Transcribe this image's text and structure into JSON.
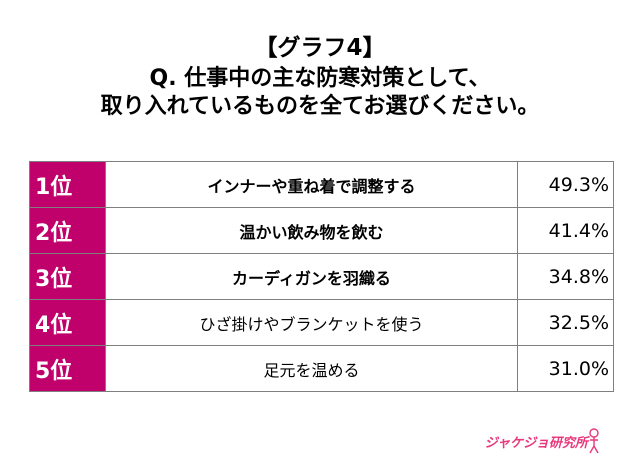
{
  "title": {
    "line1": "【グラフ4】",
    "line2": "Q. 仕事中の主な防寒対策として、",
    "line3": "取り入れているものを全てお選びください。"
  },
  "chart_data": {
    "type": "table",
    "rows": [
      {
        "rank": "1位",
        "label": "インナーや重ね着で調整する",
        "value": "49.3%",
        "bold": true
      },
      {
        "rank": "2位",
        "label": "温かい飲み物を飲む",
        "value": "41.4%",
        "bold": true
      },
      {
        "rank": "3位",
        "label": "カーディガンを羽織る",
        "value": "34.8%",
        "bold": true
      },
      {
        "rank": "4位",
        "label": "ひざ掛けやブランケットを使う",
        "value": "32.5%",
        "bold": false
      },
      {
        "rank": "5位",
        "label": "足元を温める",
        "value": "31.0%",
        "bold": false
      }
    ]
  },
  "logo": {
    "text": "ジャケジョ研究所"
  },
  "colors": {
    "rank_background": "#c0006b",
    "rank_text": "#ffffff",
    "logo": "#e8397d",
    "border": "#7f7f7f"
  }
}
